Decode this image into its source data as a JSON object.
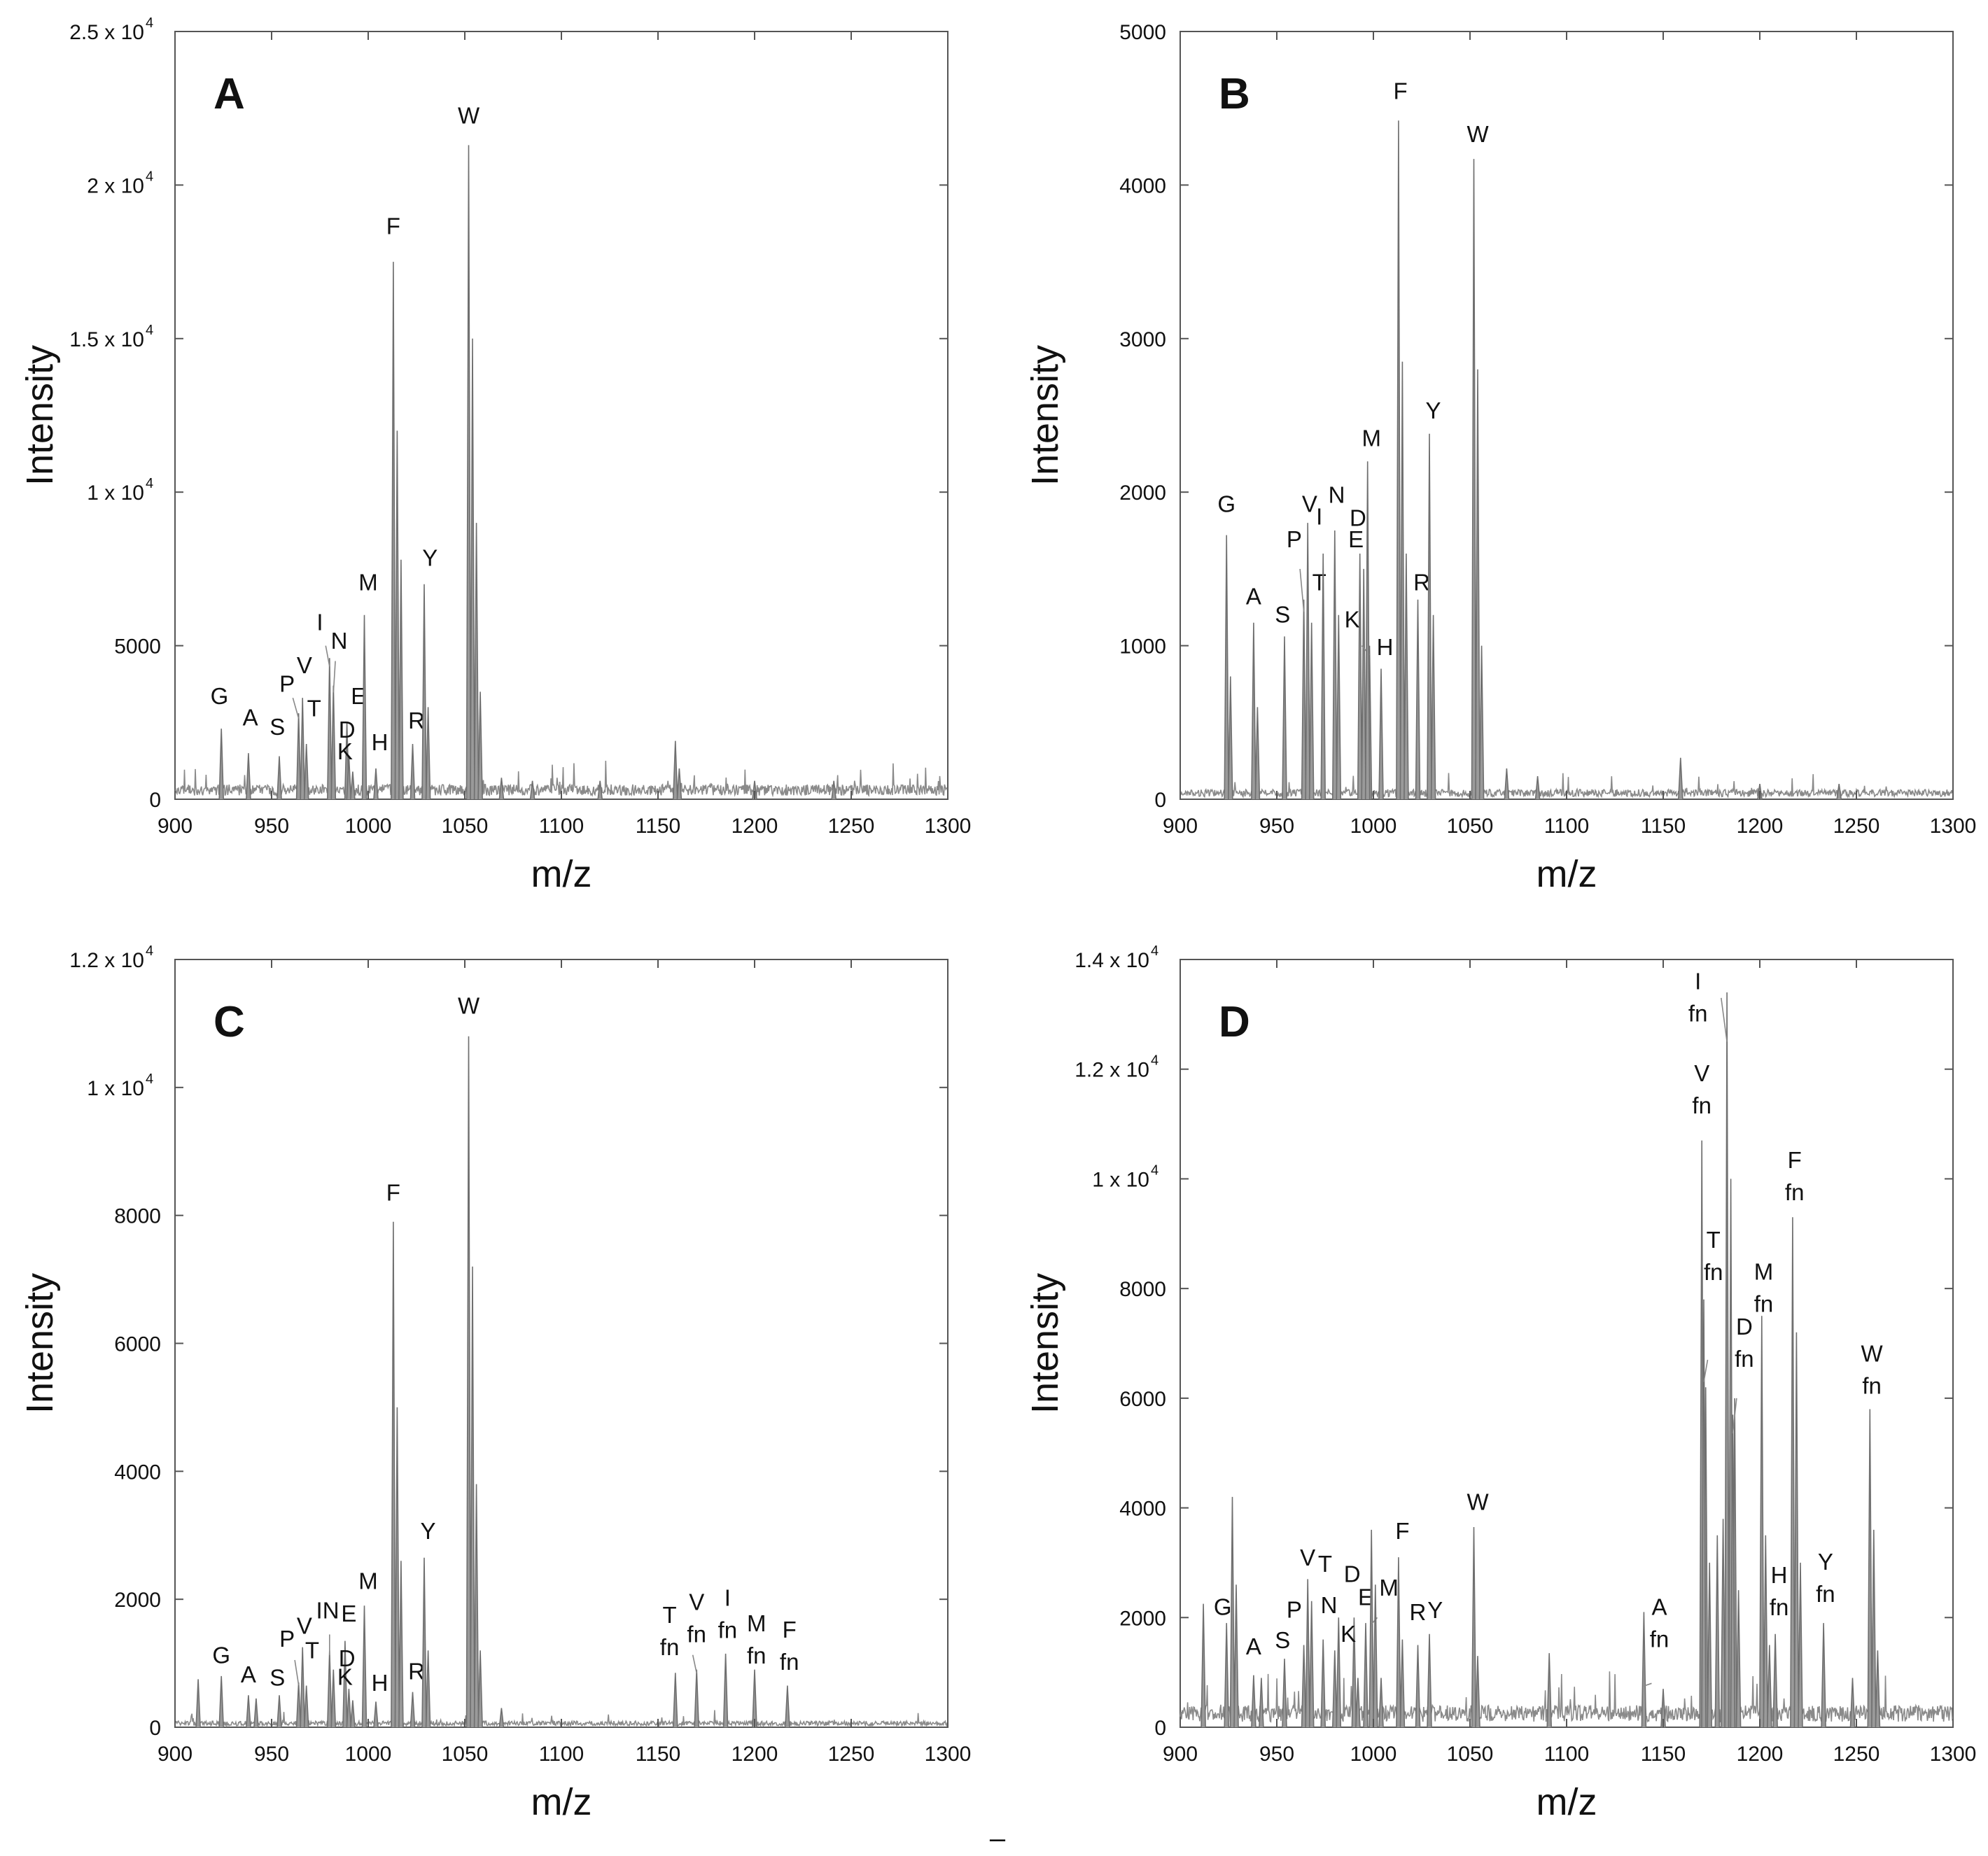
{
  "figure": {
    "bottom_mark": "–"
  },
  "chart_data": [
    {
      "type": "line",
      "panel": "A",
      "xlabel": "m/z",
      "ylabel": "Intensity",
      "xlim": [
        900,
        1300
      ],
      "ylim": [
        0,
        25000
      ],
      "xticks": [
        "900",
        "950",
        "1000",
        "1050",
        "1100",
        "1150",
        "1200",
        "1250",
        "1300"
      ],
      "yticks": [
        {
          "v": 0,
          "t": "0"
        },
        {
          "v": 5000,
          "t": "5000"
        },
        {
          "v": 10000,
          "t": "1 x 10",
          "exp": "4"
        },
        {
          "v": 15000,
          "t": "1.5 x 10",
          "exp": "4"
        },
        {
          "v": 20000,
          "t": "2 x 10",
          "exp": "4"
        },
        {
          "v": 25000,
          "t": "2.5 x 10",
          "exp": "4"
        }
      ],
      "baseline": 300,
      "peaks": [
        {
          "x": 924,
          "y": 2300,
          "label": "G",
          "lx": 923,
          "ly": 3100
        },
        {
          "x": 938,
          "y": 1500,
          "label": "A",
          "lx": 939,
          "ly": 2400
        },
        {
          "x": 954,
          "y": 1400,
          "label": "S",
          "lx": 953,
          "ly": 2100
        },
        {
          "x": 964,
          "y": 2800,
          "label": "P",
          "lx": 958,
          "ly": 3500,
          "leader": [
            961,
            3300
          ]
        },
        {
          "x": 966,
          "y": 3300,
          "label": "V",
          "lx": 967,
          "ly": 4100
        },
        {
          "x": 968,
          "y": 1800,
          "label": "T",
          "lx": 972,
          "ly": 2700
        },
        {
          "x": 980,
          "y": 4600,
          "label": "I",
          "lx": 975,
          "ly": 5500,
          "leader": [
            978,
            5000
          ]
        },
        {
          "x": 982,
          "y": 3700,
          "label": "N",
          "lx": 985,
          "ly": 4900,
          "leader": [
            983,
            4500
          ]
        },
        {
          "x": 989,
          "y": 2500,
          "label": "E",
          "lx": 995,
          "ly": 3100
        },
        {
          "x": 990,
          "y": 1400,
          "label": "D",
          "lx": 989,
          "ly": 2000
        },
        {
          "x": 992,
          "y": 900,
          "label": "K",
          "lx": 988,
          "ly": 1300
        },
        {
          "x": 998,
          "y": 6000,
          "label": "M",
          "lx": 1000,
          "ly": 6800
        },
        {
          "x": 1004,
          "y": 1000,
          "label": "H",
          "lx": 1006,
          "ly": 1600
        },
        {
          "x": 1013,
          "y": 17500,
          "label": "F",
          "lx": 1013,
          "ly": 18400
        },
        {
          "x": 1015,
          "y": 12000
        },
        {
          "x": 1017,
          "y": 7800
        },
        {
          "x": 1023,
          "y": 1800,
          "label": "R",
          "lx": 1025,
          "ly": 2300
        },
        {
          "x": 1029,
          "y": 7000,
          "label": "Y",
          "lx": 1032,
          "ly": 7600
        },
        {
          "x": 1031,
          "y": 3000
        },
        {
          "x": 1052,
          "y": 21300,
          "label": "W",
          "lx": 1052,
          "ly": 22000
        },
        {
          "x": 1054,
          "y": 15000
        },
        {
          "x": 1056,
          "y": 9000
        },
        {
          "x": 1058,
          "y": 3500
        },
        {
          "x": 1069,
          "y": 700
        },
        {
          "x": 1085,
          "y": 600
        },
        {
          "x": 1120,
          "y": 600
        },
        {
          "x": 1159,
          "y": 1900
        },
        {
          "x": 1161,
          "y": 1000
        },
        {
          "x": 1200,
          "y": 600
        },
        {
          "x": 1241,
          "y": 600
        }
      ]
    },
    {
      "type": "line",
      "panel": "B",
      "xlabel": "m/z",
      "ylabel": "Intensity",
      "xlim": [
        900,
        1300
      ],
      "ylim": [
        0,
        5000
      ],
      "xticks": [
        "900",
        "950",
        "1000",
        "1050",
        "1100",
        "1150",
        "1200",
        "1250",
        "1300"
      ],
      "yticks": [
        {
          "v": 0,
          "t": "0"
        },
        {
          "v": 1000,
          "t": "1000"
        },
        {
          "v": 2000,
          "t": "2000"
        },
        {
          "v": 3000,
          "t": "3000"
        },
        {
          "v": 4000,
          "t": "4000"
        },
        {
          "v": 5000,
          "t": "5000"
        }
      ],
      "baseline": 40,
      "peaks": [
        {
          "x": 924,
          "y": 1720,
          "label": "G",
          "lx": 924,
          "ly": 1870
        },
        {
          "x": 926,
          "y": 800
        },
        {
          "x": 938,
          "y": 1150,
          "label": "A",
          "lx": 938,
          "ly": 1270
        },
        {
          "x": 940,
          "y": 600
        },
        {
          "x": 954,
          "y": 1060,
          "label": "S",
          "lx": 953,
          "ly": 1150
        },
        {
          "x": 964,
          "y": 1300,
          "label": "P",
          "lx": 959,
          "ly": 1640,
          "leader": [
            962,
            1500
          ]
        },
        {
          "x": 966,
          "y": 1800,
          "label": "V",
          "lx": 967,
          "ly": 1870
        },
        {
          "x": 968,
          "y": 1150,
          "label": "T",
          "lx": 972,
          "ly": 1360
        },
        {
          "x": 974,
          "y": 1600,
          "label": "I",
          "lx": 972,
          "ly": 1790
        },
        {
          "x": 980,
          "y": 1750,
          "label": "N",
          "lx": 981,
          "ly": 1930
        },
        {
          "x": 982,
          "y": 1200
        },
        {
          "x": 993,
          "y": 1600,
          "label": "D",
          "lx": 992,
          "ly": 1780
        },
        {
          "x": 995,
          "y": 1500,
          "label": "E",
          "lx": 991,
          "ly": 1640
        },
        {
          "x": 998,
          "y": 1000,
          "label": "K",
          "lx": 989,
          "ly": 1120,
          "leader": [
            994,
            1000
          ]
        },
        {
          "x": 997,
          "y": 2200,
          "label": "M",
          "lx": 999,
          "ly": 2300
        },
        {
          "x": 1004,
          "y": 850,
          "label": "H",
          "lx": 1006,
          "ly": 940
        },
        {
          "x": 1013,
          "y": 4420,
          "label": "F",
          "lx": 1014,
          "ly": 4560
        },
        {
          "x": 1015,
          "y": 2850
        },
        {
          "x": 1017,
          "y": 1600
        },
        {
          "x": 1023,
          "y": 1300,
          "label": "R",
          "lx": 1025,
          "ly": 1360
        },
        {
          "x": 1029,
          "y": 2380,
          "label": "Y",
          "lx": 1031,
          "ly": 2480
        },
        {
          "x": 1031,
          "y": 1200
        },
        {
          "x": 1052,
          "y": 4170,
          "label": "W",
          "lx": 1054,
          "ly": 4280
        },
        {
          "x": 1054,
          "y": 2800
        },
        {
          "x": 1056,
          "y": 1000
        },
        {
          "x": 1069,
          "y": 200
        },
        {
          "x": 1085,
          "y": 150
        },
        {
          "x": 1159,
          "y": 270
        },
        {
          "x": 1200,
          "y": 100
        },
        {
          "x": 1241,
          "y": 100
        }
      ]
    },
    {
      "type": "line",
      "panel": "C",
      "xlabel": "m/z",
      "ylabel": "Intensity",
      "xlim": [
        900,
        1300
      ],
      "ylim": [
        0,
        12000
      ],
      "xticks": [
        "900",
        "950",
        "1000",
        "1050",
        "1100",
        "1150",
        "1200",
        "1250",
        "1300"
      ],
      "yticks": [
        {
          "v": 0,
          "t": "0"
        },
        {
          "v": 2000,
          "t": "2000"
        },
        {
          "v": 4000,
          "t": "4000"
        },
        {
          "v": 6000,
          "t": "6000"
        },
        {
          "v": 8000,
          "t": "8000"
        },
        {
          "v": 10000,
          "t": "1 x 10",
          "exp": "4"
        },
        {
          "v": 12000,
          "t": "1.2 x 10",
          "exp": "4"
        }
      ],
      "baseline": 60,
      "peaks": [
        {
          "x": 912,
          "y": 750
        },
        {
          "x": 924,
          "y": 800,
          "label": "G",
          "lx": 924,
          "ly": 1000
        },
        {
          "x": 938,
          "y": 500,
          "label": "A",
          "lx": 938,
          "ly": 700
        },
        {
          "x": 942,
          "y": 450
        },
        {
          "x": 954,
          "y": 500,
          "label": "S",
          "lx": 953,
          "ly": 650
        },
        {
          "x": 964,
          "y": 700,
          "label": "P",
          "lx": 958,
          "ly": 1260,
          "leader": [
            962,
            1050
          ]
        },
        {
          "x": 966,
          "y": 1250,
          "label": "V",
          "lx": 967,
          "ly": 1460
        },
        {
          "x": 968,
          "y": 650,
          "label": "T",
          "lx": 971,
          "ly": 1080
        },
        {
          "x": 980,
          "y": 1200,
          "label": "IN",
          "lx": 979,
          "ly": 1700,
          "leader": [
            980,
            1450
          ]
        },
        {
          "x": 982,
          "y": 900
        },
        {
          "x": 988,
          "y": 1350,
          "label": "E",
          "lx": 990,
          "ly": 1650
        },
        {
          "x": 990,
          "y": 600,
          "label": "D",
          "lx": 989,
          "ly": 950
        },
        {
          "x": 992,
          "y": 420,
          "label": "K",
          "lx": 988,
          "ly": 660
        },
        {
          "x": 998,
          "y": 1900,
          "label": "M",
          "lx": 1000,
          "ly": 2160
        },
        {
          "x": 1004,
          "y": 400,
          "label": "H",
          "lx": 1006,
          "ly": 570
        },
        {
          "x": 1013,
          "y": 7900,
          "label": "F",
          "lx": 1013,
          "ly": 8230
        },
        {
          "x": 1015,
          "y": 5000
        },
        {
          "x": 1017,
          "y": 2600
        },
        {
          "x": 1023,
          "y": 550,
          "label": "R",
          "lx": 1025,
          "ly": 750
        },
        {
          "x": 1029,
          "y": 2650,
          "label": "Y",
          "lx": 1031,
          "ly": 2940
        },
        {
          "x": 1031,
          "y": 1200
        },
        {
          "x": 1052,
          "y": 10800,
          "label": "W",
          "lx": 1052,
          "ly": 11150
        },
        {
          "x": 1054,
          "y": 7200
        },
        {
          "x": 1056,
          "y": 3800
        },
        {
          "x": 1058,
          "y": 1200
        },
        {
          "x": 1069,
          "y": 300
        },
        {
          "x": 1159,
          "y": 850,
          "label": "T",
          "sub": "fn",
          "lx": 1156,
          "ly": 1630
        },
        {
          "x": 1170,
          "y": 900,
          "label": "V",
          "sub": "fn",
          "lx": 1170,
          "ly": 1830,
          "leader": [
            1168,
            1130
          ]
        },
        {
          "x": 1185,
          "y": 1150,
          "label": "I",
          "sub": "fn",
          "lx": 1186,
          "ly": 1900
        },
        {
          "x": 1200,
          "y": 900,
          "label": "M",
          "sub": "fn",
          "lx": 1201,
          "ly": 1500
        },
        {
          "x": 1217,
          "y": 650,
          "label": "F",
          "sub": "fn",
          "lx": 1218,
          "ly": 1400
        }
      ]
    },
    {
      "type": "line",
      "panel": "D",
      "xlabel": "m/z",
      "ylabel": "Intensity",
      "xlim": [
        900,
        1300
      ],
      "ylim": [
        0,
        14000
      ],
      "xticks": [
        "900",
        "950",
        "1000",
        "1050",
        "1100",
        "1150",
        "1200",
        "1250",
        "1300"
      ],
      "yticks": [
        {
          "v": 0,
          "t": "0"
        },
        {
          "v": 2000,
          "t": "2000"
        },
        {
          "v": 4000,
          "t": "4000"
        },
        {
          "v": 6000,
          "t": "6000"
        },
        {
          "v": 8000,
          "t": "8000"
        },
        {
          "v": 10000,
          "t": "1 x 10",
          "exp": "4"
        },
        {
          "v": 12000,
          "t": "1.2 x 10",
          "exp": "4"
        },
        {
          "v": 14000,
          "t": "1.4 x 10",
          "exp": "4"
        }
      ],
      "baseline": 250,
      "peaks": [
        {
          "x": 912,
          "y": 2250
        },
        {
          "x": 924,
          "y": 1900,
          "label": "G",
          "lx": 922,
          "ly": 2050
        },
        {
          "x": 927,
          "y": 4200
        },
        {
          "x": 929,
          "y": 2600
        },
        {
          "x": 938,
          "y": 950,
          "label": "A",
          "lx": 938,
          "ly": 1330
        },
        {
          "x": 942,
          "y": 900
        },
        {
          "x": 954,
          "y": 1250,
          "label": "S",
          "lx": 953,
          "ly": 1440
        },
        {
          "x": 964,
          "y": 1500,
          "label": "P",
          "lx": 959,
          "ly": 2000
        },
        {
          "x": 966,
          "y": 2700,
          "label": "V",
          "lx": 966,
          "ly": 2950
        },
        {
          "x": 968,
          "y": 2300
        },
        {
          "x": 974,
          "y": 1600,
          "label": "T",
          "lx": 975,
          "ly": 2830
        },
        {
          "x": 980,
          "y": 1400,
          "label": "N",
          "lx": 977,
          "ly": 2080
        },
        {
          "x": 982,
          "y": 2000
        },
        {
          "x": 990,
          "y": 2000,
          "label": "D",
          "lx": 989,
          "ly": 2650
        },
        {
          "x": 992,
          "y": 900,
          "label": "K",
          "lx": 987,
          "ly": 1560
        },
        {
          "x": 996,
          "y": 1900,
          "label": "E",
          "lx": 996,
          "ly": 2230
        },
        {
          "x": 999,
          "y": 3600,
          "label": "M",
          "lx": 1008,
          "ly": 2400,
          "leader": [
            1002,
            2000
          ]
        },
        {
          "x": 1001,
          "y": 2600
        },
        {
          "x": 1004,
          "y": 900
        },
        {
          "x": 1013,
          "y": 3100,
          "label": "F",
          "lx": 1015,
          "ly": 3430
        },
        {
          "x": 1015,
          "y": 1600
        },
        {
          "x": 1023,
          "y": 1500,
          "label": "R",
          "lx": 1023,
          "ly": 1950
        },
        {
          "x": 1029,
          "y": 1700,
          "label": "Y",
          "lx": 1032,
          "ly": 1990
        },
        {
          "x": 1052,
          "y": 3650,
          "label": "W",
          "lx": 1054,
          "ly": 3960
        },
        {
          "x": 1054,
          "y": 1300
        },
        {
          "x": 1091,
          "y": 1350
        },
        {
          "x": 1140,
          "y": 2100,
          "label": "A",
          "sub": "fn",
          "lx": 1148,
          "ly": 2050,
          "leader": [
            1144,
            800
          ]
        },
        {
          "x": 1150,
          "y": 700
        },
        {
          "x": 1170,
          "y": 10700,
          "label": "V",
          "sub": "fn",
          "lx": 1170,
          "ly": 11780
        },
        {
          "x": 1172,
          "y": 6200
        },
        {
          "x": 1174,
          "y": 3000
        },
        {
          "x": 1178,
          "y": 3500
        },
        {
          "x": 1181,
          "y": 3800
        },
        {
          "x": 1183,
          "y": 13400,
          "label": "I",
          "sub": "fn",
          "lx": 1168,
          "ly": 13460,
          "leader": [
            1180,
            13300
          ]
        },
        {
          "x": 1185,
          "y": 10000
        },
        {
          "x": 1187,
          "y": 6000
        },
        {
          "x": 1189,
          "y": 2500
        },
        {
          "x": 1171,
          "y": 7800,
          "label": "T",
          "sub": "fn",
          "lx": 1176,
          "ly": 8740,
          "leader": [
            1173,
            6700
          ]
        },
        {
          "x": 1186,
          "y": 5700,
          "label": "D",
          "sub": "fn",
          "lx": 1192,
          "ly": 7160,
          "leader": [
            1188,
            6000
          ]
        },
        {
          "x": 1201,
          "y": 7500,
          "label": "M",
          "sub": "fn",
          "lx": 1202,
          "ly": 8160
        },
        {
          "x": 1203,
          "y": 3500
        },
        {
          "x": 1205,
          "y": 1500,
          "label": "H",
          "sub": "fn",
          "lx": 1210,
          "ly": 2630
        },
        {
          "x": 1208,
          "y": 1700
        },
        {
          "x": 1217,
          "y": 9300,
          "label": "F",
          "sub": "fn",
          "lx": 1218,
          "ly": 10200
        },
        {
          "x": 1219,
          "y": 7200
        },
        {
          "x": 1221,
          "y": 3000
        },
        {
          "x": 1233,
          "y": 1900,
          "label": "Y",
          "sub": "fn",
          "lx": 1234,
          "ly": 2870
        },
        {
          "x": 1248,
          "y": 900
        },
        {
          "x": 1257,
          "y": 5800,
          "label": "W",
          "sub": "fn",
          "lx": 1258,
          "ly": 6670
        },
        {
          "x": 1259,
          "y": 3600
        },
        {
          "x": 1261,
          "y": 1400
        }
      ]
    }
  ]
}
